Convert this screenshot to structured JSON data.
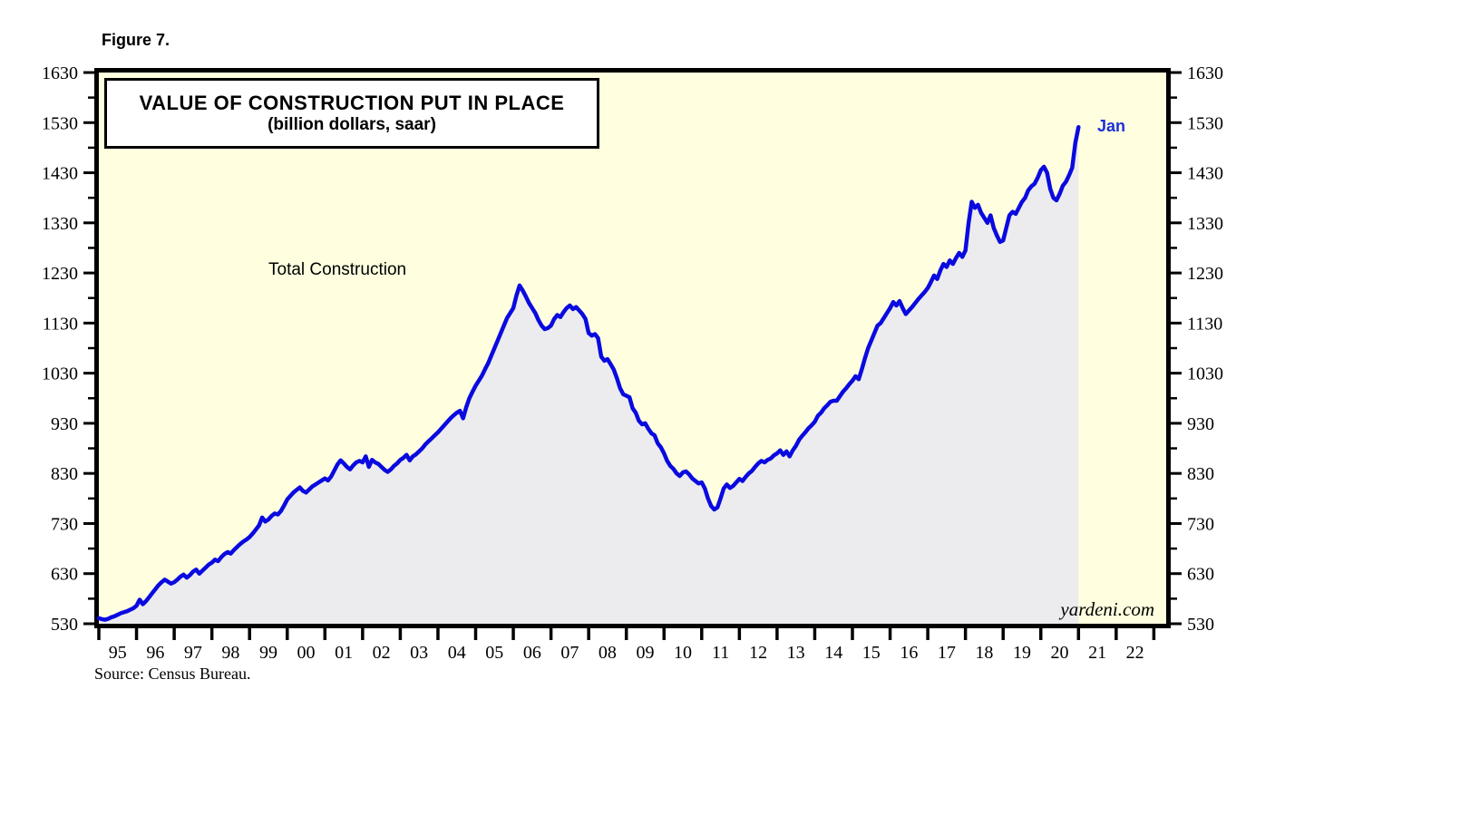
{
  "figure": {
    "label": "Figure 7."
  },
  "chart": {
    "title_line1": "VALUE OF CONSTRUCTION PUT IN PLACE",
    "title_line2": "(billion dollars, saar)",
    "series_label": "Total Construction",
    "end_label": "Jan",
    "watermark": "yardeni.com"
  },
  "source": {
    "text": "Source: Census Bureau."
  },
  "chart_data": {
    "type": "area",
    "title": "VALUE OF CONSTRUCTION PUT IN PLACE",
    "subtitle": "(billion dollars, saar)",
    "series_name": "Total Construction",
    "unit": "billion dollars, saar",
    "frequency": "monthly",
    "start": "1995-01",
    "end": "2021-01",
    "ylim": [
      530,
      1630
    ],
    "y_ticks": [
      530,
      630,
      730,
      830,
      930,
      1030,
      1130,
      1230,
      1330,
      1430,
      1530,
      1630
    ],
    "x_year_labels": [
      "95",
      "96",
      "97",
      "98",
      "99",
      "00",
      "01",
      "02",
      "03",
      "04",
      "05",
      "06",
      "07",
      "08",
      "09",
      "10",
      "11",
      "12",
      "13",
      "14",
      "15",
      "16",
      "17",
      "18",
      "19",
      "20",
      "21",
      "22"
    ],
    "x_axis_year_range": [
      1995,
      2023
    ],
    "grid": false,
    "legend_position": "none",
    "annotation_last_point": {
      "label": "Jan",
      "date": "2021-01",
      "value": 1521
    },
    "line_color": "#0a0ae0",
    "fill_color": "#ececee",
    "plot_background_color": "#ffffe0",
    "values": [
      541,
      539,
      538,
      540,
      543,
      545,
      548,
      551,
      553,
      555,
      558,
      561,
      566,
      578,
      569,
      575,
      583,
      591,
      599,
      607,
      613,
      618,
      614,
      610,
      613,
      618,
      624,
      628,
      622,
      627,
      634,
      638,
      630,
      636,
      642,
      648,
      652,
      658,
      655,
      663,
      669,
      673,
      670,
      677,
      683,
      689,
      694,
      698,
      703,
      710,
      718,
      726,
      742,
      734,
      738,
      745,
      750,
      748,
      755,
      766,
      778,
      785,
      792,
      797,
      802,
      795,
      792,
      798,
      804,
      808,
      812,
      816,
      820,
      816,
      824,
      836,
      848,
      856,
      850,
      843,
      838,
      846,
      852,
      855,
      852,
      864,
      843,
      857,
      852,
      849,
      843,
      837,
      833,
      838,
      845,
      850,
      857,
      861,
      867,
      856,
      864,
      868,
      874,
      880,
      888,
      894,
      900,
      906,
      912,
      919,
      926,
      933,
      940,
      946,
      951,
      955,
      940,
      962,
      980,
      993,
      1005,
      1015,
      1025,
      1038,
      1050,
      1065,
      1080,
      1095,
      1110,
      1125,
      1140,
      1150,
      1160,
      1185,
      1205,
      1195,
      1183,
      1170,
      1160,
      1150,
      1136,
      1125,
      1118,
      1120,
      1125,
      1138,
      1146,
      1142,
      1152,
      1160,
      1165,
      1158,
      1162,
      1155,
      1148,
      1138,
      1110,
      1105,
      1108,
      1100,
      1063,
      1055,
      1058,
      1048,
      1037,
      1020,
      1000,
      988,
      985,
      982,
      960,
      951,
      935,
      928,
      930,
      919,
      910,
      906,
      890,
      882,
      870,
      855,
      845,
      839,
      830,
      825,
      832,
      834,
      828,
      820,
      815,
      810,
      812,
      800,
      780,
      765,
      758,
      762,
      780,
      800,
      808,
      801,
      805,
      812,
      819,
      815,
      823,
      830,
      835,
      843,
      850,
      855,
      852,
      857,
      860,
      866,
      870,
      876,
      867,
      874,
      864,
      876,
      885,
      897,
      905,
      912,
      920,
      926,
      933,
      945,
      951,
      960,
      966,
      973,
      975,
      975,
      984,
      993,
      1000,
      1008,
      1015,
      1024,
      1018,
      1038,
      1060,
      1080,
      1095,
      1110,
      1125,
      1130,
      1140,
      1150,
      1160,
      1172,
      1165,
      1174,
      1160,
      1148,
      1155,
      1162,
      1170,
      1178,
      1185,
      1192,
      1200,
      1212,
      1225,
      1218,
      1235,
      1248,
      1242,
      1255,
      1248,
      1260,
      1270,
      1262,
      1275,
      1330,
      1372,
      1360,
      1366,
      1350,
      1340,
      1330,
      1345,
      1320,
      1305,
      1292,
      1295,
      1320,
      1345,
      1352,
      1348,
      1360,
      1372,
      1380,
      1395,
      1403,
      1408,
      1420,
      1435,
      1442,
      1430,
      1398,
      1380,
      1375,
      1388,
      1404,
      1412,
      1425,
      1440,
      1490,
      1521
    ]
  }
}
